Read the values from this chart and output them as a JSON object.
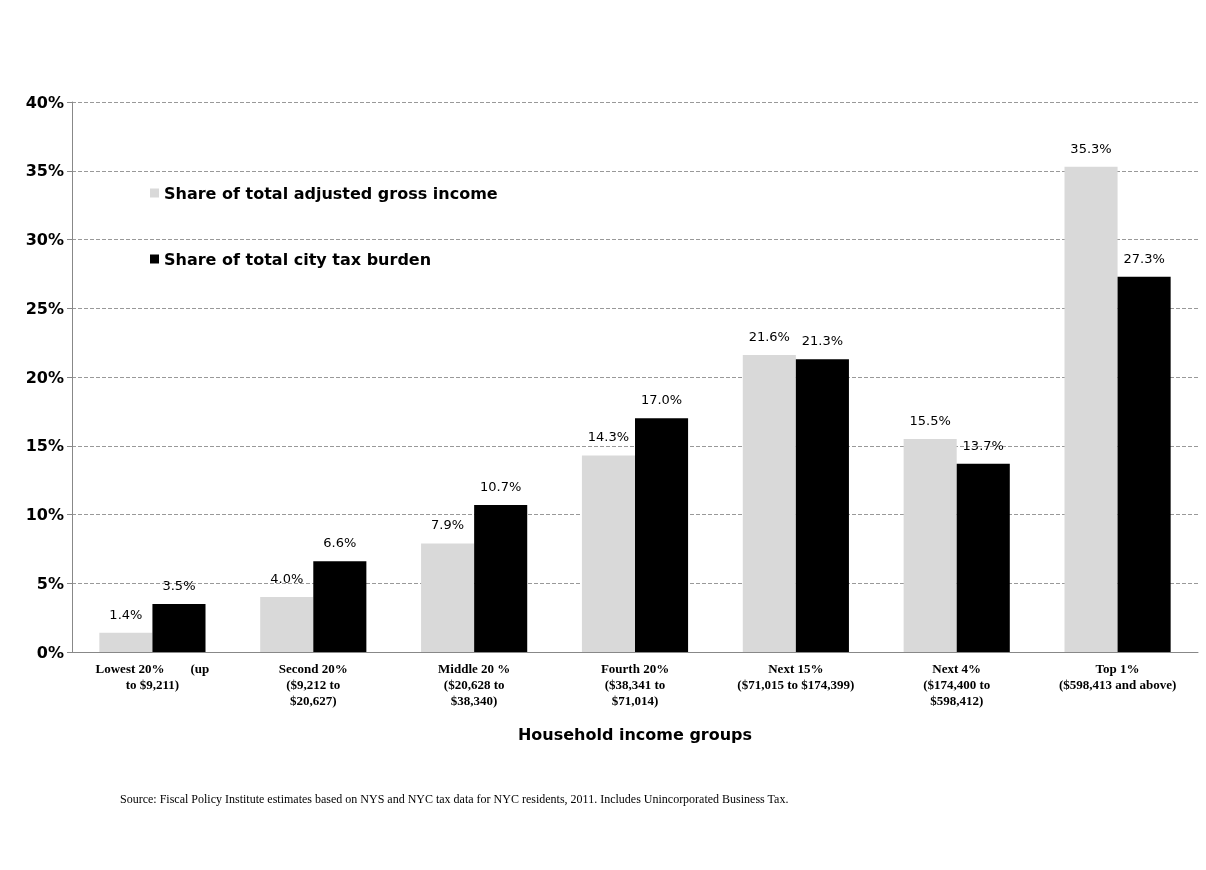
{
  "chart_data": {
    "type": "bar",
    "xlabel": "Household income groups",
    "categories": [
      "Lowest 20%        (up\nto $9,211)",
      "Second 20%\n($9,212 to\n$20,627)",
      "Middle 20 %\n($20,628 to\n$38,340)",
      "Fourth 20%\n($38,341 to\n$71,014)",
      "Next 15%\n($71,015 to $174,399)",
      "Next 4%\n($174,400 to\n$598,412)",
      "Top 1%\n($598,413 and above)"
    ],
    "series": [
      {
        "name": "Share of total adjusted gross income",
        "color": "#d9d9d9",
        "values": [
          1.4,
          4.0,
          7.9,
          14.3,
          21.6,
          15.5,
          35.3
        ],
        "value_labels": [
          "1.4%",
          "4.0%",
          "7.9%",
          "14.3%",
          "21.6%",
          "15.5%",
          "35.3%"
        ]
      },
      {
        "name": "Share of total city tax burden",
        "color": "#000000",
        "values": [
          3.5,
          6.6,
          10.7,
          17.0,
          21.3,
          13.7,
          27.3
        ],
        "value_labels": [
          "3.5%",
          "6.6%",
          "10.7%",
          "17.0%",
          "21.3%",
          "13.7%",
          "27.3%"
        ]
      }
    ],
    "ylim": [
      0,
      40
    ],
    "yticks": [
      {
        "value": 0,
        "label": "0%"
      },
      {
        "value": 5,
        "label": "5%"
      },
      {
        "value": 10,
        "label": "10%"
      },
      {
        "value": 15,
        "label": "15%"
      },
      {
        "value": 20,
        "label": "20%"
      },
      {
        "value": 25,
        "label": "25%"
      },
      {
        "value": 30,
        "label": "30%"
      },
      {
        "value": 35,
        "label": "35%"
      },
      {
        "value": 40,
        "label": "40%"
      }
    ],
    "grid": "y",
    "legend": "top left",
    "annotations": [
      "Source: Fiscal Policy Institute estimates based on NYS and NYC tax data for NYC residents, 2011. Includes Unincorporated Business Tax."
    ]
  }
}
